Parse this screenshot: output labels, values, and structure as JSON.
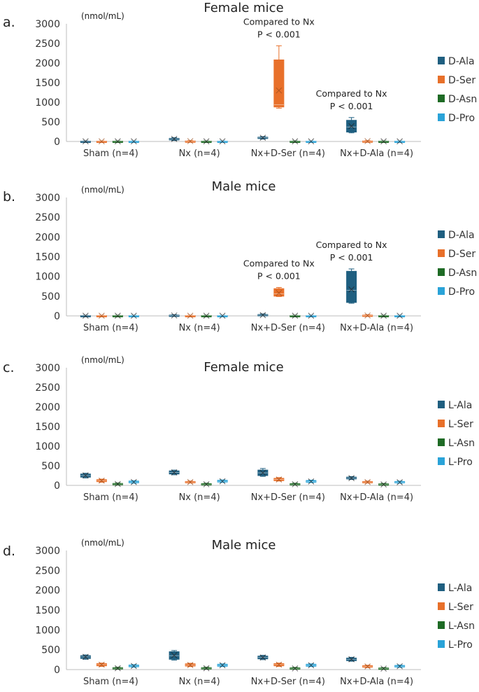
{
  "chart_data": [
    {
      "type": "box",
      "panel_label": "a.",
      "title": "Female mice",
      "unit_label": "(nmol/mL)",
      "ylim": [
        0,
        3000
      ],
      "yticks": [
        0,
        500,
        1000,
        1500,
        2000,
        2500,
        3000
      ],
      "categories": [
        "Sham (n=4)",
        "Nx (n=4)",
        "Nx+D-Ser (n=4)",
        "Nx+D-Ala (n=4)"
      ],
      "series": [
        {
          "name": "D-Ala",
          "color": "#1f5f80",
          "boxes": [
            {
              "min": 0,
              "q1": 0,
              "median": 5,
              "mean": 5,
              "q3": 10,
              "max": 15
            },
            {
              "min": 25,
              "q1": 40,
              "median": 65,
              "mean": 65,
              "q3": 80,
              "max": 95
            },
            {
              "min": 60,
              "q1": 75,
              "median": 95,
              "mean": 95,
              "q3": 110,
              "max": 125
            },
            {
              "min": 220,
              "q1": 240,
              "median": 370,
              "mean": 390,
              "q3": 540,
              "max": 610
            }
          ]
        },
        {
          "name": "D-Ser",
          "color": "#e8702a",
          "boxes": [
            {
              "min": 0,
              "q1": 0,
              "median": 5,
              "mean": 5,
              "q3": 10,
              "max": 15
            },
            {
              "min": 0,
              "q1": 5,
              "median": 10,
              "mean": 10,
              "q3": 15,
              "max": 25
            },
            {
              "min": 850,
              "q1": 880,
              "median": 940,
              "mean": 1300,
              "q3": 2080,
              "max": 2440
            },
            {
              "min": 0,
              "q1": 5,
              "median": 10,
              "mean": 10,
              "q3": 15,
              "max": 25
            }
          ]
        },
        {
          "name": "D-Asn",
          "color": "#1e6b25",
          "boxes": [
            {
              "min": 0,
              "q1": 0,
              "median": 5,
              "mean": 5,
              "q3": 10,
              "max": 15
            },
            {
              "min": 0,
              "q1": 0,
              "median": 5,
              "mean": 5,
              "q3": 10,
              "max": 15
            },
            {
              "min": 0,
              "q1": 0,
              "median": 5,
              "mean": 5,
              "q3": 10,
              "max": 15
            },
            {
              "min": 0,
              "q1": 0,
              "median": 5,
              "mean": 5,
              "q3": 10,
              "max": 15
            }
          ]
        },
        {
          "name": "D-Pro",
          "color": "#2aa3d8",
          "boxes": [
            {
              "min": 0,
              "q1": 0,
              "median": 5,
              "mean": 5,
              "q3": 10,
              "max": 15
            },
            {
              "min": 0,
              "q1": 0,
              "median": 5,
              "mean": 5,
              "q3": 10,
              "max": 15
            },
            {
              "min": 0,
              "q1": 0,
              "median": 5,
              "mean": 5,
              "q3": 10,
              "max": 15
            },
            {
              "min": 0,
              "q1": 0,
              "median": 5,
              "mean": 5,
              "q3": 10,
              "max": 15
            }
          ]
        }
      ],
      "annotations": [
        {
          "category": 2,
          "series": 1,
          "lines": [
            "Compared to Nx",
            "P < 0.001"
          ]
        },
        {
          "category": 3,
          "series": 0,
          "lines": [
            "Compared to Nx",
            "P < 0.001"
          ]
        }
      ]
    },
    {
      "type": "box",
      "panel_label": "b.",
      "title": "Male mice",
      "unit_label": "(nmol/mL)",
      "ylim": [
        0,
        3000
      ],
      "yticks": [
        0,
        500,
        1000,
        1500,
        2000,
        2500,
        3000
      ],
      "categories": [
        "Sham (n=4)",
        "Nx (n=4)",
        "Nx+D-Ser (n=4)",
        "Nx+D-Ala (n=4)"
      ],
      "series": [
        {
          "name": "D-Ala",
          "color": "#1f5f80",
          "boxes": [
            {
              "min": 0,
              "q1": 0,
              "median": 5,
              "mean": 5,
              "q3": 10,
              "max": 15
            },
            {
              "min": 0,
              "q1": 5,
              "median": 10,
              "mean": 10,
              "q3": 20,
              "max": 30
            },
            {
              "min": 0,
              "q1": 10,
              "median": 20,
              "mean": 20,
              "q3": 35,
              "max": 50
            },
            {
              "min": 320,
              "q1": 340,
              "median": 650,
              "mean": 670,
              "q3": 1130,
              "max": 1190
            }
          ]
        },
        {
          "name": "D-Ser",
          "color": "#e8702a",
          "boxes": [
            {
              "min": 0,
              "q1": 0,
              "median": 5,
              "mean": 5,
              "q3": 10,
              "max": 15
            },
            {
              "min": 0,
              "q1": 0,
              "median": 5,
              "mean": 5,
              "q3": 10,
              "max": 15
            },
            {
              "min": 490,
              "q1": 500,
              "median": 560,
              "mean": 580,
              "q3": 690,
              "max": 720
            },
            {
              "min": 0,
              "q1": 5,
              "median": 10,
              "mean": 10,
              "q3": 20,
              "max": 30
            }
          ]
        },
        {
          "name": "D-Asn",
          "color": "#1e6b25",
          "boxes": [
            {
              "min": 0,
              "q1": 0,
              "median": 5,
              "mean": 5,
              "q3": 10,
              "max": 15
            },
            {
              "min": 0,
              "q1": 0,
              "median": 5,
              "mean": 5,
              "q3": 10,
              "max": 15
            },
            {
              "min": 0,
              "q1": 0,
              "median": 5,
              "mean": 5,
              "q3": 10,
              "max": 15
            },
            {
              "min": 0,
              "q1": 0,
              "median": 5,
              "mean": 5,
              "q3": 10,
              "max": 15
            }
          ]
        },
        {
          "name": "D-Pro",
          "color": "#2aa3d8",
          "boxes": [
            {
              "min": 0,
              "q1": 0,
              "median": 5,
              "mean": 5,
              "q3": 10,
              "max": 15
            },
            {
              "min": 0,
              "q1": 0,
              "median": 5,
              "mean": 5,
              "q3": 10,
              "max": 15
            },
            {
              "min": 0,
              "q1": 0,
              "median": 5,
              "mean": 5,
              "q3": 10,
              "max": 15
            },
            {
              "min": 0,
              "q1": 0,
              "median": 5,
              "mean": 5,
              "q3": 10,
              "max": 15
            }
          ]
        }
      ],
      "annotations": [
        {
          "category": 2,
          "series": 1,
          "lines": [
            "Compared to Nx",
            "P < 0.001"
          ]
        },
        {
          "category": 3,
          "series": 0,
          "lines": [
            "Compared to Nx",
            "P < 0.001"
          ]
        }
      ]
    },
    {
      "type": "box",
      "panel_label": "c.",
      "title": "Female mice",
      "unit_label": "(nmol/mL)",
      "ylim": [
        0,
        3000
      ],
      "yticks": [
        0,
        500,
        1000,
        1500,
        2000,
        2500,
        3000
      ],
      "categories": [
        "Sham (n=4)",
        "Nx (n=4)",
        "Nx+D-Ser (n=4)",
        "Nx+D-Ala (n=4)"
      ],
      "series": [
        {
          "name": "L-Ala",
          "color": "#1f5f80",
          "boxes": [
            {
              "min": 190,
              "q1": 210,
              "median": 250,
              "mean": 255,
              "q3": 290,
              "max": 310
            },
            {
              "min": 270,
              "q1": 290,
              "median": 330,
              "mean": 330,
              "q3": 370,
              "max": 390
            },
            {
              "min": 230,
              "q1": 250,
              "median": 320,
              "mean": 320,
              "q3": 390,
              "max": 430
            },
            {
              "min": 150,
              "q1": 165,
              "median": 185,
              "mean": 185,
              "q3": 210,
              "max": 225
            }
          ]
        },
        {
          "name": "L-Ser",
          "color": "#e8702a",
          "boxes": [
            {
              "min": 80,
              "q1": 95,
              "median": 120,
              "mean": 120,
              "q3": 145,
              "max": 160
            },
            {
              "min": 60,
              "q1": 70,
              "median": 85,
              "mean": 85,
              "q3": 100,
              "max": 110
            },
            {
              "min": 110,
              "q1": 120,
              "median": 150,
              "mean": 150,
              "q3": 180,
              "max": 200
            },
            {
              "min": 60,
              "q1": 70,
              "median": 85,
              "mean": 85,
              "q3": 100,
              "max": 110
            }
          ]
        },
        {
          "name": "L-Asn",
          "color": "#1e6b25",
          "boxes": [
            {
              "min": 10,
              "q1": 20,
              "median": 35,
              "mean": 35,
              "q3": 50,
              "max": 60
            },
            {
              "min": 10,
              "q1": 15,
              "median": 30,
              "mean": 30,
              "q3": 45,
              "max": 55
            },
            {
              "min": 10,
              "q1": 15,
              "median": 30,
              "mean": 30,
              "q3": 45,
              "max": 55
            },
            {
              "min": 10,
              "q1": 15,
              "median": 25,
              "mean": 25,
              "q3": 40,
              "max": 50
            }
          ]
        },
        {
          "name": "L-Pro",
          "color": "#2aa3d8",
          "boxes": [
            {
              "min": 55,
              "q1": 65,
              "median": 85,
              "mean": 85,
              "q3": 110,
              "max": 120
            },
            {
              "min": 75,
              "q1": 85,
              "median": 105,
              "mean": 105,
              "q3": 130,
              "max": 140
            },
            {
              "min": 70,
              "q1": 80,
              "median": 100,
              "mean": 100,
              "q3": 125,
              "max": 135
            },
            {
              "min": 55,
              "q1": 65,
              "median": 80,
              "mean": 80,
              "q3": 100,
              "max": 110
            }
          ]
        }
      ],
      "annotations": []
    },
    {
      "type": "box",
      "panel_label": "d.",
      "title": "Male mice",
      "unit_label": "(nmol/mL)",
      "ylim": [
        0,
        3000
      ],
      "yticks": [
        0,
        500,
        1000,
        1500,
        2000,
        2500,
        3000
      ],
      "categories": [
        "Sham (n=4)",
        "Nx (n=4)",
        "Nx+D-Ser (n=4)",
        "Nx+D-Ala (n=4)"
      ],
      "series": [
        {
          "name": "L-Ala",
          "color": "#1f5f80",
          "boxes": [
            {
              "min": 260,
              "q1": 280,
              "median": 320,
              "mean": 320,
              "q3": 350,
              "max": 370
            },
            {
              "min": 240,
              "q1": 260,
              "median": 350,
              "mean": 360,
              "q3": 450,
              "max": 480
            },
            {
              "min": 250,
              "q1": 270,
              "median": 305,
              "mean": 305,
              "q3": 340,
              "max": 360
            },
            {
              "min": 210,
              "q1": 225,
              "median": 260,
              "mean": 260,
              "q3": 290,
              "max": 310
            }
          ]
        },
        {
          "name": "L-Ser",
          "color": "#e8702a",
          "boxes": [
            {
              "min": 80,
              "q1": 95,
              "median": 125,
              "mean": 125,
              "q3": 150,
              "max": 165
            },
            {
              "min": 75,
              "q1": 90,
              "median": 115,
              "mean": 115,
              "q3": 145,
              "max": 160
            },
            {
              "min": 80,
              "q1": 95,
              "median": 125,
              "mean": 125,
              "q3": 150,
              "max": 165
            },
            {
              "min": 50,
              "q1": 60,
              "median": 80,
              "mean": 80,
              "q3": 100,
              "max": 110
            }
          ]
        },
        {
          "name": "L-Asn",
          "color": "#1e6b25",
          "boxes": [
            {
              "min": 10,
              "q1": 20,
              "median": 35,
              "mean": 35,
              "q3": 50,
              "max": 60
            },
            {
              "min": 10,
              "q1": 20,
              "median": 35,
              "mean": 35,
              "q3": 50,
              "max": 60
            },
            {
              "min": 10,
              "q1": 15,
              "median": 30,
              "mean": 30,
              "q3": 45,
              "max": 55
            },
            {
              "min": 10,
              "q1": 15,
              "median": 25,
              "mean": 25,
              "q3": 40,
              "max": 50
            }
          ]
        },
        {
          "name": "L-Pro",
          "color": "#2aa3d8",
          "boxes": [
            {
              "min": 60,
              "q1": 70,
              "median": 90,
              "mean": 90,
              "q3": 115,
              "max": 125
            },
            {
              "min": 75,
              "q1": 85,
              "median": 110,
              "mean": 110,
              "q3": 135,
              "max": 145
            },
            {
              "min": 75,
              "q1": 85,
              "median": 110,
              "mean": 110,
              "q3": 135,
              "max": 145
            },
            {
              "min": 55,
              "q1": 65,
              "median": 85,
              "mean": 85,
              "q3": 105,
              "max": 115
            }
          ]
        }
      ],
      "annotations": []
    }
  ]
}
